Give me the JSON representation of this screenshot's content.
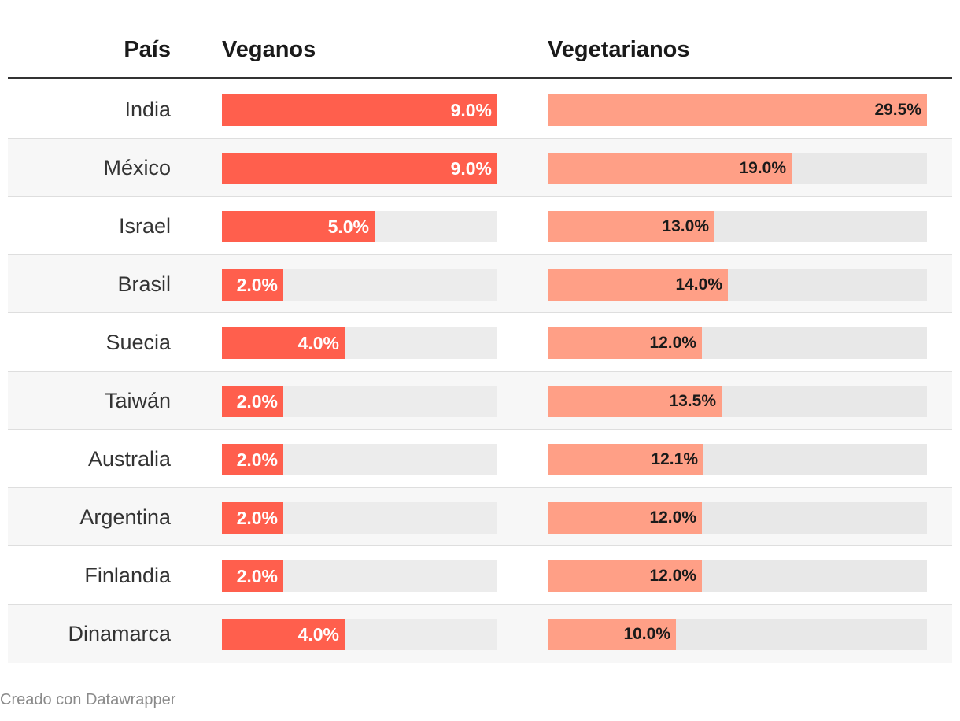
{
  "chart_data": {
    "type": "table",
    "headers": {
      "country": "País",
      "vegan": "Veganos",
      "vegetarian": "Vegetarianos"
    },
    "max_value": 30,
    "rows": [
      {
        "country": "India",
        "vegan": 9.0,
        "vegan_label": "9.0%",
        "vegetarian": 29.5,
        "vegetarian_label": "29.5%"
      },
      {
        "country": "México",
        "vegan": 9.0,
        "vegan_label": "9.0%",
        "vegetarian": 19.0,
        "vegetarian_label": "19.0%"
      },
      {
        "country": "Israel",
        "vegan": 5.0,
        "vegan_label": "5.0%",
        "vegetarian": 13.0,
        "vegetarian_label": "13.0%"
      },
      {
        "country": "Brasil",
        "vegan": 2.0,
        "vegan_label": "2.0%",
        "vegetarian": 14.0,
        "vegetarian_label": "14.0%"
      },
      {
        "country": "Suecia",
        "vegan": 4.0,
        "vegan_label": "4.0%",
        "vegetarian": 12.0,
        "vegetarian_label": "12.0%"
      },
      {
        "country": "Taiwán",
        "vegan": 2.0,
        "vegan_label": "2.0%",
        "vegetarian": 13.5,
        "vegetarian_label": "13.5%"
      },
      {
        "country": "Australia",
        "vegan": 2.0,
        "vegan_label": "2.0%",
        "vegetarian": 12.1,
        "vegetarian_label": "12.1%"
      },
      {
        "country": "Argentina",
        "vegan": 2.0,
        "vegan_label": "2.0%",
        "vegetarian": 12.0,
        "vegetarian_label": "12.0%"
      },
      {
        "country": "Finlandia",
        "vegan": 2.0,
        "vegan_label": "2.0%",
        "vegetarian": 12.0,
        "vegetarian_label": "12.0%"
      },
      {
        "country": "Dinamarca",
        "vegan": 4.0,
        "vegan_label": "4.0%",
        "vegetarian": 10.0,
        "vegetarian_label": "10.0%"
      }
    ],
    "colors": {
      "vegan_bar": "#ff5f4d",
      "vegetarian_bar": "#ff9f86",
      "track": "#ececec"
    }
  },
  "footer": {
    "credit": "Creado con Datawrapper"
  }
}
